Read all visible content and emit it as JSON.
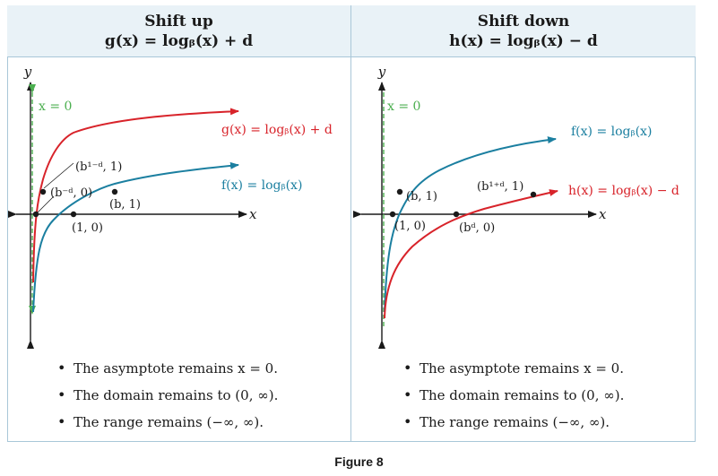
{
  "left_panel": {
    "title": "Shift up",
    "formula": "g(x) = logᵦ(x) + d",
    "y_axis_label": "y",
    "x_axis_label": "x",
    "asymptote_label": "x = 0",
    "red_curve_label": "g(x) = logᵦ(x) + d",
    "blue_curve_label": "f(x) = logᵦ(x)",
    "point_labels": [
      "(b¹⁻ᵈ, 1)",
      "(b⁻ᵈ, 0)",
      "(b, 1)",
      "(1, 0)"
    ],
    "bullets": [
      "The asymptote remains x = 0.",
      "The domain remains to (0, ∞).",
      "The range remains (−∞, ∞)."
    ]
  },
  "right_panel": {
    "title": "Shift down",
    "formula": "h(x) = logᵦ(x) − d",
    "y_axis_label": "y",
    "x_axis_label": "x",
    "asymptote_label": "x = 0",
    "blue_curve_label": "f(x) = logᵦ(x)",
    "red_curve_label": "h(x) = logᵦ(x) − d",
    "point_labels": [
      "(b, 1)",
      "(b¹⁺ᵈ, 1)",
      "(1, 0)",
      "(bᵈ, 0)"
    ],
    "bullets": [
      "The asymptote remains x = 0.",
      "The domain remains to (0, ∞).",
      "The range remains (−∞, ∞)."
    ]
  },
  "caption": "Figure 8",
  "colors": {
    "red_curve": "#d8232a",
    "blue_curve": "#1b7fa0",
    "asymptote": "#4caf50",
    "axes": "#1a1a1a",
    "header_bg": "#e9f2f7",
    "border": "#a9c7d8"
  }
}
